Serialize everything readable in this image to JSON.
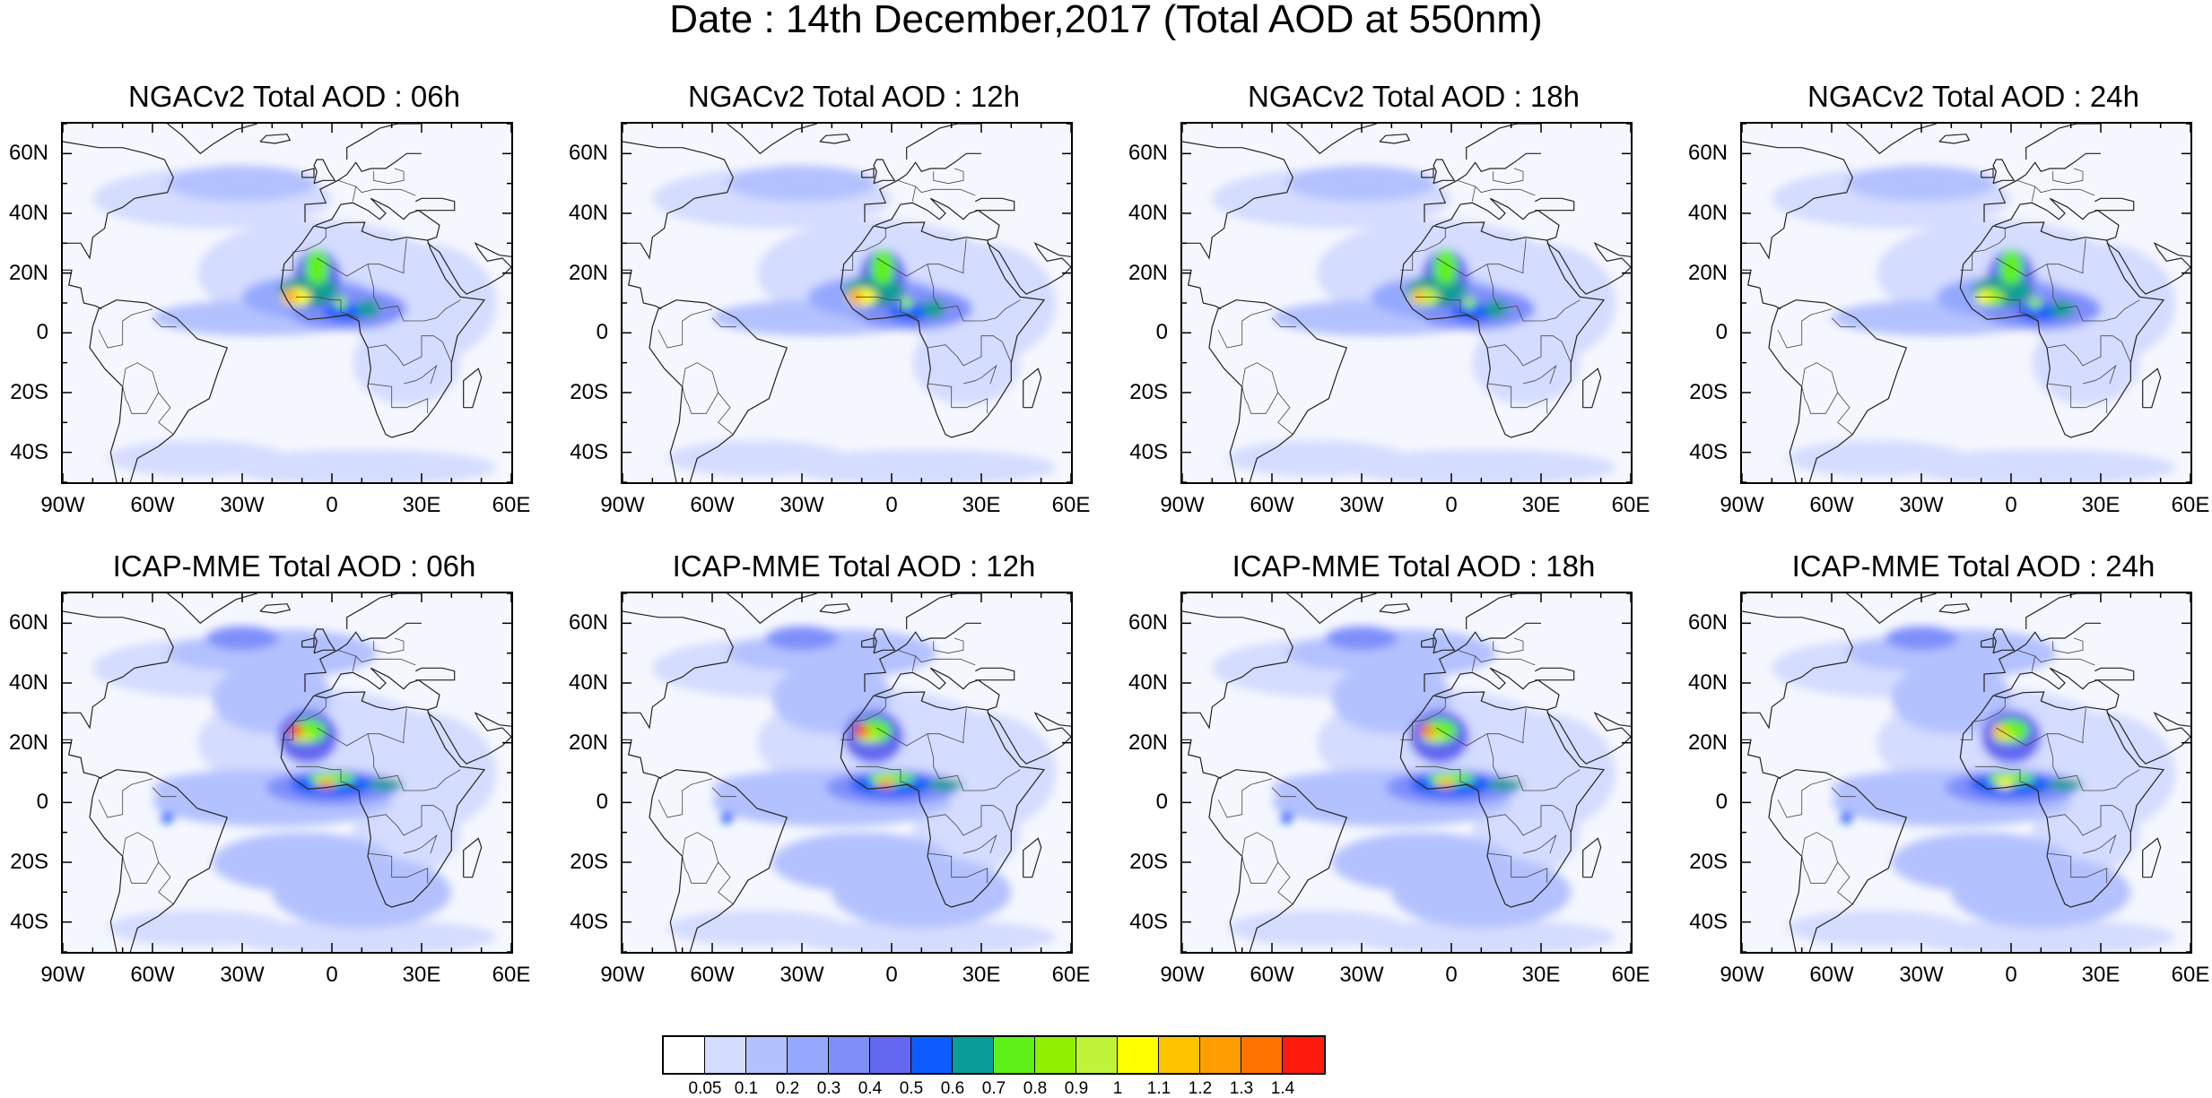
{
  "title": "Date : 14th December,2017 (Total AOD at 550nm)",
  "lat_labels": [
    "60N",
    "40N",
    "20N",
    "0",
    "20S",
    "40S"
  ],
  "lon_labels": [
    "90W",
    "60W",
    "30W",
    "0",
    "30E",
    "60E"
  ],
  "map_extent": {
    "lon_min": -90,
    "lon_max": 60,
    "lat_min": -50,
    "lat_max": 70
  },
  "panels": [
    {
      "title": "NGACv2 Total AOD : 06h",
      "model": "NGACv2",
      "hour": 6
    },
    {
      "title": "NGACv2 Total AOD : 12h",
      "model": "NGACv2",
      "hour": 12
    },
    {
      "title": "NGACv2 Total AOD : 18h",
      "model": "NGACv2",
      "hour": 18
    },
    {
      "title": "NGACv2 Total AOD : 24h",
      "model": "NGACv2",
      "hour": 24
    },
    {
      "title": "ICAP-MME Total AOD : 06h",
      "model": "ICAP-MME",
      "hour": 6
    },
    {
      "title": "ICAP-MME Total AOD : 12h",
      "model": "ICAP-MME",
      "hour": 12
    },
    {
      "title": "ICAP-MME Total AOD : 18h",
      "model": "ICAP-MME",
      "hour": 18
    },
    {
      "title": "ICAP-MME Total AOD : 24h",
      "model": "ICAP-MME",
      "hour": 24
    }
  ],
  "colorbar": {
    "labels": [
      "0.05",
      "0.1",
      "0.2",
      "0.3",
      "0.4",
      "0.5",
      "0.6",
      "0.7",
      "0.8",
      "0.9",
      "1",
      "1.1",
      "1.2",
      "1.3",
      "1.4"
    ],
    "colors": [
      "#ffffff",
      "#d4dcff",
      "#b3c1ff",
      "#94a9fe",
      "#7f8ffa",
      "#6468f0",
      "#0c5cff",
      "#089d96",
      "#5ef118",
      "#8ff100",
      "#c0f43a",
      "#ffff00",
      "#ffc400",
      "#ff9e00",
      "#ff7400",
      "#ff1c0c"
    ]
  }
}
